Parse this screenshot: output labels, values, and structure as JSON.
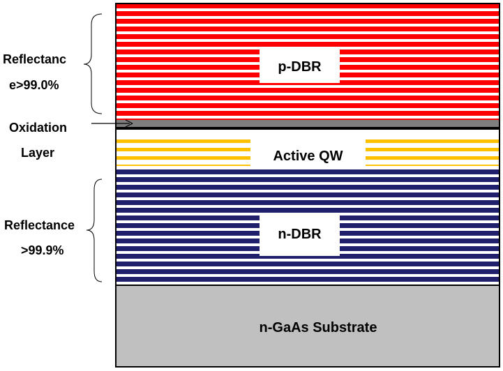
{
  "labels": {
    "p_dbr": "p-DBR",
    "active_qw": "Active QW",
    "n_dbr": "n-DBR",
    "substrate": "n-GaAs Substrate",
    "reflectance_top_line1": "Reflectanc",
    "reflectance_top_line2": "e>99.0%",
    "oxidation_line1": "Oxidation",
    "oxidation_line2": "Layer",
    "reflectance_bottom_line1": "Reflectance",
    "reflectance_bottom_line2": ">99.9%"
  },
  "colors": {
    "p_dbr": "#ff0000",
    "oxidation": "#7f7f7f",
    "active_qw": "#ffc000",
    "n_dbr": "#1f1f6b",
    "substrate": "#c0c0c0",
    "outline": "#000000"
  }
}
